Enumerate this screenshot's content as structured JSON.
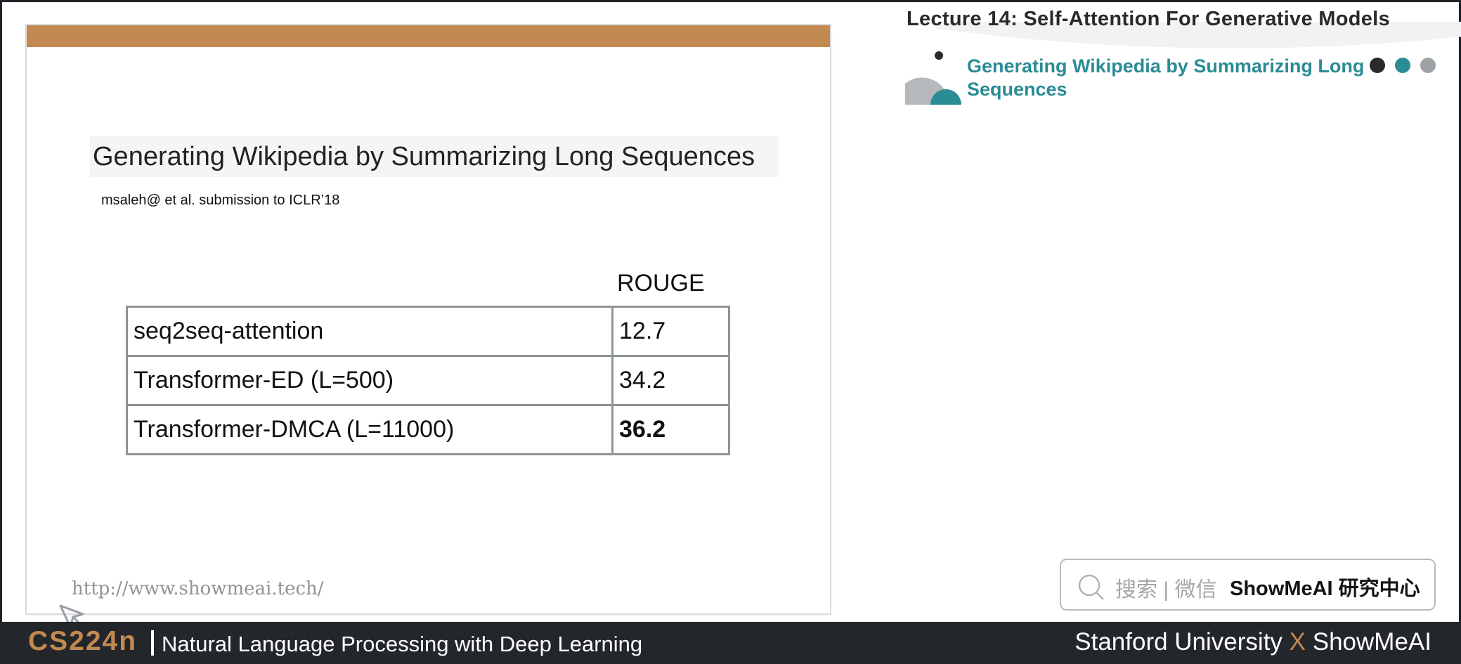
{
  "slide": {
    "title": "Generating Wikipedia by Summarizing Long Sequences",
    "subtitle": "msaleh@ et al. submission to ICLR’18",
    "column_header": "ROUGE",
    "rows": [
      {
        "model": "seq2seq-attention",
        "score": "12.7"
      },
      {
        "model": "Transformer-ED (L=500)",
        "score": "34.2"
      },
      {
        "model": "Transformer-DMCA (L=11000)",
        "score": "36.2"
      }
    ],
    "url": "http://www.showmeai.tech/"
  },
  "header": {
    "lecture_title": "Lecture 14:  Self-Attention For Generative Models",
    "section_title": "Generating Wikipedia by Summarizing Long Sequences"
  },
  "search": {
    "hint": "搜索 | 微信",
    "brand": "ShowMeAI 研究中心"
  },
  "footer": {
    "course_code": "CS224n",
    "course_name": "Natural Language Processing with Deep Learning",
    "right_left": "Stanford University",
    "right_x": "X",
    "right_right": "ShowMeAI"
  },
  "colors": {
    "accent_brown": "#c28a50",
    "accent_teal": "#2a8c95",
    "footer_bg": "#23262b"
  }
}
